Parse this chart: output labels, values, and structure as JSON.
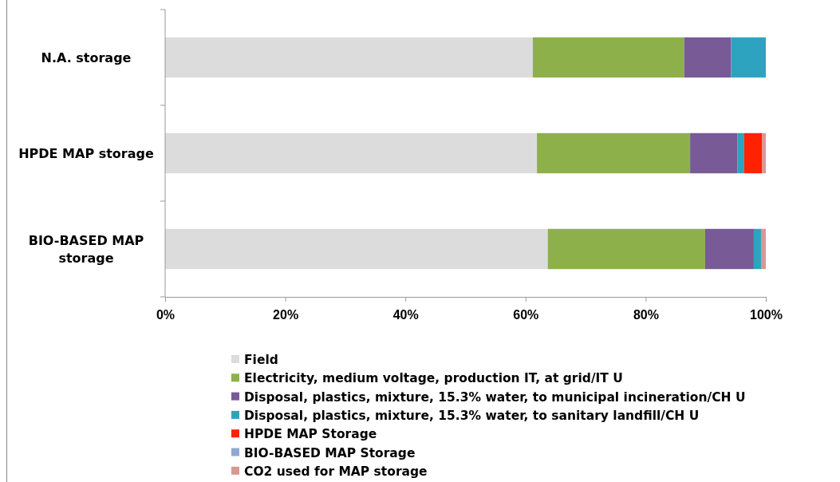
{
  "chart_data": {
    "type": "bar",
    "orientation": "horizontal",
    "stacked": true,
    "categories": [
      "N.A. storage",
      "HPDE MAP storage",
      "BIO-BASED MAP storage"
    ],
    "xlim": [
      0,
      100
    ],
    "xticks": [
      {
        "value": 0,
        "label": "0%"
      },
      {
        "value": 20,
        "label": "20%"
      },
      {
        "value": 40,
        "label": "40%"
      },
      {
        "value": 60,
        "label": "60%"
      },
      {
        "value": 80,
        "label": "80%"
      },
      {
        "value": 100,
        "label": "100%"
      }
    ],
    "grid": false,
    "legend": "bottom",
    "series": [
      {
        "name": "Field",
        "color": "#dcdcdc",
        "values": [
          61.2,
          61.9,
          63.7
        ]
      },
      {
        "name": "Electricity, medium voltage, production IT, at grid/IT U",
        "color": "#8db04a",
        "values": [
          25.2,
          25.5,
          26.2
        ]
      },
      {
        "name": "Disposal, plastics, mixture, 15.3% water, to municipal incineration/CH U",
        "color": "#775a96",
        "values": [
          7.8,
          7.9,
          8.1
        ]
      },
      {
        "name": "Disposal, plastics, mixture, 15.3% water, to sanitary landfill/CH U",
        "color": "#2ea3bf",
        "values": [
          5.8,
          1.1,
          1.2
        ]
      },
      {
        "name": "HPDE MAP Storage",
        "color": "#ff2200",
        "values": [
          0,
          3.0,
          0
        ]
      },
      {
        "name": "BIO-BASED MAP Storage",
        "color": "#8fa8d0",
        "values": [
          0,
          0,
          0
        ]
      },
      {
        "name": "CO2 used for MAP storage",
        "color": "#d99794",
        "values": [
          0,
          0.6,
          0.8
        ]
      }
    ]
  }
}
